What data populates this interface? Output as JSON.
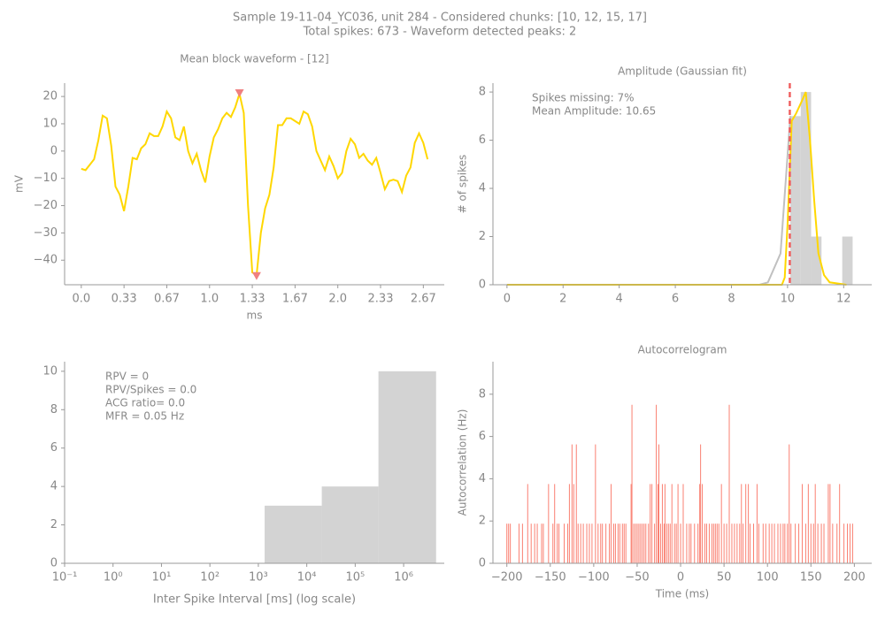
{
  "title": "Sample 19-11-04_YC036, unit 284 - Considered chunks: [10, 12, 15, 17]",
  "subtitle": "Total spikes: 673 - Waveform detected peaks: 2",
  "chart_data": [
    {
      "type": "line",
      "title": "Mean block waveform - [12]",
      "xlabel": "ms",
      "ylabel": "mV",
      "x": [
        0,
        0.0333,
        0.0667,
        0.1,
        0.1333,
        0.1667,
        0.2,
        0.2333,
        0.2667,
        0.3,
        0.3333,
        0.3667,
        0.4,
        0.4333,
        0.4667,
        0.5,
        0.5333,
        0.5667,
        0.6,
        0.6333,
        0.6667,
        0.7,
        0.7333,
        0.7667,
        0.8,
        0.8333,
        0.8667,
        0.9,
        0.9333,
        0.9667,
        1,
        1.0333,
        1.0667,
        1.1,
        1.1333,
        1.1667,
        1.2,
        1.2333,
        1.2667,
        1.3,
        1.3333,
        1.3667,
        1.4,
        1.4333,
        1.4667,
        1.5,
        1.5333,
        1.5667,
        1.6,
        1.6333,
        1.6667,
        1.7,
        1.7333,
        1.7667,
        1.8,
        1.8333,
        1.8667,
        1.9,
        1.9333,
        1.9667,
        2,
        2.0333,
        2.0667,
        2.1,
        2.1333,
        2.1667,
        2.2,
        2.2333,
        2.2667,
        2.3,
        2.3333,
        2.3667,
        2.4,
        2.4333,
        2.4667,
        2.5,
        2.5333,
        2.5667,
        2.6,
        2.6333,
        2.6667,
        2.7
      ],
      "series": [
        {
          "color": "#ffd700",
          "values": [
            -6.5,
            -7,
            -5,
            -3,
            4,
            13,
            12,
            2,
            -13,
            -16,
            -22,
            -13,
            -2.5,
            -3,
            1,
            2.5,
            6.5,
            5.5,
            5.5,
            9,
            14.5,
            12,
            5,
            4,
            9,
            0,
            -4.5,
            -1,
            -7,
            -11.5,
            -2,
            5,
            8,
            12,
            14,
            12.5,
            16,
            21,
            14,
            -20,
            -44.5,
            -45.5,
            -30,
            -21,
            -16,
            -6,
            9.5,
            9.5,
            12,
            12,
            11,
            10,
            14.5,
            13.5,
            9,
            0,
            -3.5,
            -7,
            -2,
            -5.5,
            -10,
            -8,
            0,
            4.5,
            2.5,
            -2.5,
            -1,
            -3.5,
            -5,
            -2.5,
            -8,
            -14,
            -11,
            -10.5,
            -11,
            -15,
            -9,
            -6,
            3,
            6.5,
            3,
            -3
          ]
        }
      ],
      "peaks": {
        "color": "#f08080",
        "x": [
          1.2333,
          1.3667
        ],
        "values": [
          21,
          -46
        ]
      },
      "xlim": [
        -0.13,
        2.83
      ],
      "ylim": [
        -49,
        24.9
      ],
      "xticks": [
        {
          "value": 0,
          "label": "0.0"
        },
        {
          "value": 0.3333,
          "label": "0.33"
        },
        {
          "value": 0.6667,
          "label": "0.67"
        },
        {
          "value": 1,
          "label": "1.0"
        },
        {
          "value": 1.3333,
          "label": "1.33"
        },
        {
          "value": 1.6667,
          "label": "1.67"
        },
        {
          "value": 2,
          "label": "2.0"
        },
        {
          "value": 2.3333,
          "label": "2.33"
        },
        {
          "value": 2.6667,
          "label": "2.67"
        }
      ],
      "yticks": [
        {
          "value": -40,
          "label": "−40"
        },
        {
          "value": -30,
          "label": "−30"
        },
        {
          "value": -20,
          "label": "−20"
        },
        {
          "value": -10,
          "label": "−10"
        },
        0,
        10,
        20
      ]
    },
    {
      "type": "histogram",
      "title": "Amplitude (Gaussian fit)",
      "ylabel": "# of spikes",
      "bins": [
        10.1,
        10.47,
        10.84,
        11.21,
        11.58,
        11.95,
        12.32
      ],
      "counts": [
        7,
        8,
        2,
        0,
        0,
        2
      ],
      "color": "#d3d3d3",
      "lines": [
        {
          "color": "#c0c0c0",
          "x": [
            0,
            9.0,
            9.3,
            9.75,
            10.1
          ],
          "values": [
            0,
            0,
            0.1,
            1.3,
            7
          ]
        },
        {
          "color": "#ffd700",
          "x": [
            0,
            9.8,
            9.9,
            10.0,
            10.15,
            10.3,
            10.5,
            10.65,
            10.8,
            10.95,
            11.1,
            11.3,
            11.5,
            11.8,
            12.1
          ],
          "values": [
            0,
            0,
            0.3,
            2.5,
            6.8,
            7.1,
            7.6,
            8,
            6,
            3.5,
            1.3,
            0.4,
            0.1,
            0.05,
            0
          ]
        }
      ],
      "vline": {
        "x": 10.08,
        "color": "#f06060"
      },
      "annotation": [
        "Spikes missing: 7%",
        "Mean Amplitude: 10.65"
      ],
      "xlim": [
        -0.5,
        13
      ],
      "ylim": [
        0,
        8.37
      ],
      "xticks": [
        0,
        2,
        4,
        6,
        8,
        10,
        12
      ],
      "yticks": [
        0,
        2,
        4,
        6,
        8
      ]
    },
    {
      "type": "histogram",
      "xscale": "log",
      "xlabel": "Inter Spike Interval [ms] (log scale)",
      "bins": [
        1349,
        20417,
        301995,
        4677351
      ],
      "counts": [
        3,
        4,
        10
      ],
      "color": "#d3d3d3",
      "annotation": [
        "RPV = 0",
        "RPV/Spikes = 0.0",
        "ACG ratio= 0.0",
        "MFR = 0.05 Hz"
      ],
      "xlim": [
        0.1,
        6900000
      ],
      "ylim": [
        0,
        10.5
      ],
      "xticks": [
        {
          "value": 0.1,
          "label": "10⁻¹"
        },
        {
          "value": 1,
          "label": "10⁰"
        },
        {
          "value": 10,
          "label": "10¹"
        },
        {
          "value": 100,
          "label": "10²"
        },
        {
          "value": 1000,
          "label": "10³"
        },
        {
          "value": 10000,
          "label": "10⁴"
        },
        {
          "value": 100000,
          "label": "10⁵"
        },
        {
          "value": 1000000,
          "label": "10⁶"
        }
      ],
      "yticks": [
        0,
        2,
        4,
        6,
        8,
        10
      ]
    },
    {
      "type": "bar",
      "title": "Autocorrelogram",
      "xlabel": "Time (ms)",
      "ylabel": "Autocorrelation (Hz)",
      "color": "#fa8072",
      "x": [
        -200,
        -198,
        -196,
        -186,
        -182,
        -176,
        -172,
        -168,
        -165,
        -160,
        -158,
        -152,
        -147,
        -145,
        -142,
        -140,
        -134,
        -130,
        -128,
        -125,
        -123,
        -120,
        -118,
        -115,
        -112,
        -108,
        -105,
        -102,
        -98,
        -95,
        -92,
        -90,
        -86,
        -82,
        -80,
        -77,
        -75,
        -72,
        -70,
        -67,
        -65,
        -63,
        -57,
        -56,
        -54,
        -52,
        -50,
        -48,
        -46,
        -44,
        -42,
        -40,
        -37,
        -35,
        -33,
        -30,
        -28,
        -26,
        -25,
        -23,
        -21,
        -19,
        -18,
        -16,
        -14,
        -12,
        -10,
        -7,
        -5,
        -3,
        0,
        3,
        7,
        10,
        12,
        16,
        20,
        22,
        23,
        25,
        28,
        30,
        33,
        36,
        38,
        40,
        42,
        44,
        47,
        50,
        53,
        56,
        59,
        62,
        65,
        68,
        70,
        72,
        75,
        78,
        80,
        84,
        88,
        90,
        95,
        98,
        102,
        105,
        108,
        112,
        115,
        118,
        120,
        123,
        125,
        127,
        132,
        136,
        140,
        144,
        147,
        150,
        153,
        155,
        158,
        162,
        165,
        170,
        172,
        175,
        180,
        183,
        188,
        192,
        195,
        198
      ],
      "values": [
        1.875,
        1.875,
        1.875,
        1.875,
        1.875,
        3.75,
        1.875,
        1.875,
        1.875,
        1.875,
        1.875,
        3.75,
        1.875,
        3.75,
        1.875,
        1.875,
        1.875,
        1.875,
        3.75,
        5.625,
        3.75,
        5.625,
        1.875,
        1.875,
        1.875,
        1.875,
        1.875,
        1.875,
        5.625,
        1.875,
        1.875,
        1.875,
        1.875,
        1.875,
        3.75,
        1.875,
        1.875,
        1.875,
        1.875,
        1.875,
        1.875,
        1.875,
        3.75,
        7.5,
        1.875,
        1.875,
        1.875,
        1.875,
        1.875,
        1.875,
        1.875,
        1.875,
        1.875,
        3.75,
        3.75,
        1.875,
        7.5,
        3.75,
        5.625,
        1.875,
        3.75,
        1.875,
        3.75,
        1.875,
        1.875,
        1.875,
        3.75,
        1.875,
        1.875,
        3.75,
        1.875,
        3.75,
        1.875,
        1.875,
        1.875,
        1.875,
        1.875,
        3.75,
        5.625,
        3.75,
        1.875,
        1.875,
        1.875,
        1.875,
        1.875,
        1.875,
        1.875,
        1.875,
        3.75,
        1.875,
        1.875,
        7.5,
        1.875,
        1.875,
        1.875,
        1.875,
        3.75,
        1.875,
        3.75,
        3.75,
        1.875,
        1.875,
        3.75,
        1.875,
        1.875,
        1.875,
        1.875,
        1.875,
        1.875,
        1.875,
        1.875,
        1.875,
        1.875,
        1.875,
        5.625,
        1.875,
        1.875,
        1.875,
        3.75,
        1.875,
        3.75,
        1.875,
        1.875,
        3.75,
        1.875,
        1.875,
        1.875,
        3.75,
        3.75,
        1.875,
        1.875,
        3.75,
        1.875,
        1.875,
        1.875,
        1.875
      ],
      "xlim": [
        -216,
        220
      ],
      "ylim": [
        0,
        9.54
      ],
      "xticks": [
        {
          "value": -200,
          "label": "−200"
        },
        {
          "value": -150,
          "label": "−150"
        },
        {
          "value": -100,
          "label": "−100"
        },
        {
          "value": -50,
          "label": "−50"
        },
        0,
        50,
        100,
        150,
        200
      ],
      "yticks": [
        0,
        2,
        4,
        6,
        8
      ]
    }
  ]
}
